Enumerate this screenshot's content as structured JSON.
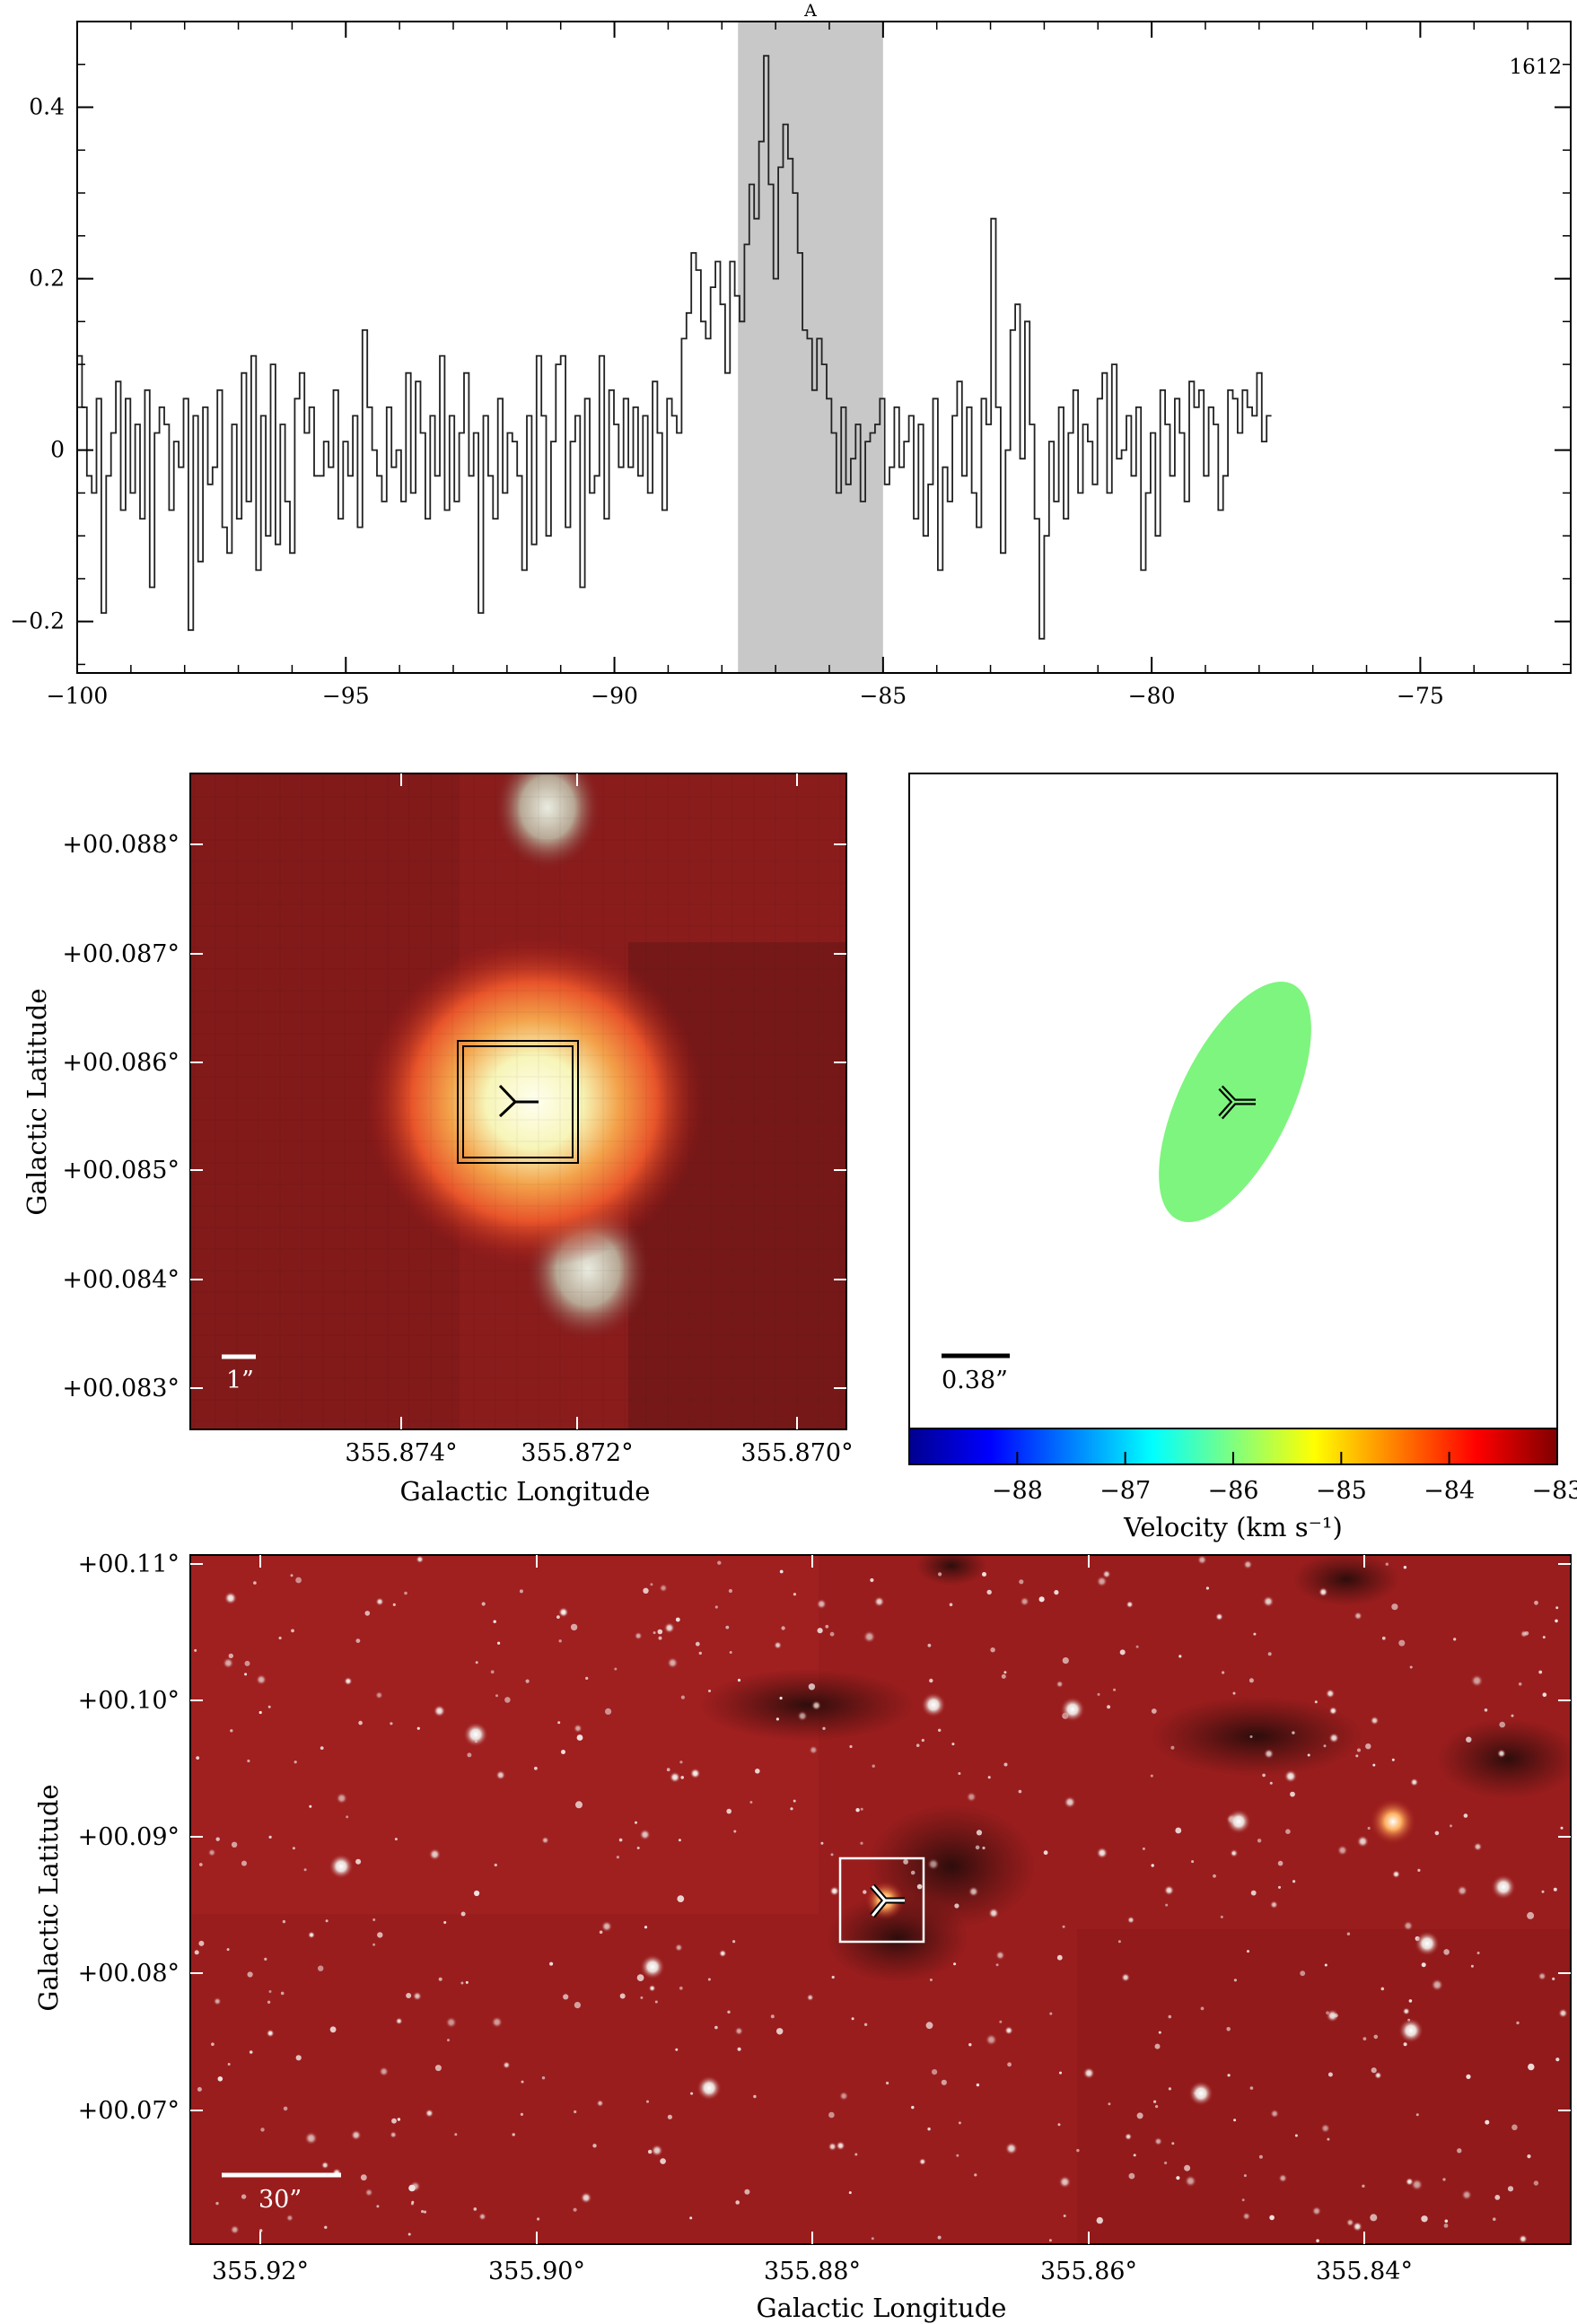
{
  "chart_data": [
    {
      "type": "line",
      "panel": "spectrum",
      "xlim": [
        -100,
        -72.2
      ],
      "ylim": [
        -0.26,
        0.5
      ],
      "xticks": [
        -100,
        -95,
        -90,
        -85,
        -80,
        -75
      ],
      "yticks": [
        -0.2,
        0,
        0.2,
        0.4
      ],
      "xtick_labels": [
        "−100",
        "−95",
        "−90",
        "−85",
        "−80",
        "−75"
      ],
      "ytick_labels": [
        "−0.2",
        "0",
        "0.2",
        "0.4"
      ],
      "corner_label": "1612",
      "highlight": {
        "x0": -87.7,
        "x1": -85.0,
        "label": "A",
        "color": "#c8c8c8"
      },
      "series": [
        {
          "x0": -100,
          "dx": 0.09,
          "y": [
            0.11,
            0.05,
            -0.03,
            -0.05,
            0.06,
            -0.19,
            -0.03,
            0.02,
            0.08,
            -0.07,
            0.06,
            -0.05,
            0.03,
            -0.08,
            0.07,
            -0.16,
            0.02,
            0.05,
            0.03,
            -0.07,
            0.01,
            -0.02,
            0.06,
            -0.21,
            0.04,
            -0.13,
            0.05,
            -0.04,
            -0.02,
            0.07,
            -0.09,
            -0.12,
            0.03,
            -0.08,
            0.09,
            -0.06,
            0.11,
            -0.14,
            0.04,
            -0.1,
            0.1,
            -0.11,
            0.03,
            -0.06,
            -0.12,
            0.06,
            0.09,
            0.02,
            0.05,
            -0.03,
            -0.03,
            0.01,
            -0.02,
            0.07,
            -0.08,
            0.01,
            -0.03,
            0.04,
            -0.09,
            0.14,
            0.05,
            0.0,
            -0.03,
            -0.06,
            0.05,
            -0.02,
            0.0,
            -0.06,
            0.09,
            -0.05,
            0.08,
            0.02,
            -0.08,
            0.04,
            -0.03,
            0.11,
            -0.07,
            0.04,
            -0.06,
            0.02,
            0.09,
            -0.03,
            0.02,
            -0.19,
            0.04,
            -0.03,
            -0.08,
            0.06,
            -0.05,
            0.02,
            0.01,
            -0.03,
            -0.14,
            0.04,
            -0.11,
            0.11,
            0.04,
            -0.1,
            0.01,
            0.1,
            0.11,
            -0.09,
            0.01,
            0.04,
            -0.16,
            0.06,
            -0.05,
            -0.03,
            0.11,
            -0.08,
            0.07,
            0.03,
            -0.02,
            0.06,
            -0.02,
            0.05,
            -0.03,
            0.04,
            -0.05,
            0.08,
            0.02,
            -0.07,
            0.06,
            0.04,
            0.02,
            0.13,
            0.16,
            0.23,
            0.21,
            0.15,
            0.13,
            0.19,
            0.22,
            0.17,
            0.09,
            0.22,
            0.18,
            0.15,
            0.24,
            0.31,
            0.27,
            0.36,
            0.46,
            0.31,
            0.2,
            0.33,
            0.38,
            0.34,
            0.3,
            0.23,
            0.14,
            0.13,
            0.07,
            0.13,
            0.1,
            0.06,
            0.02,
            -0.05,
            0.05,
            -0.04,
            -0.01,
            0.03,
            -0.06,
            0.01,
            0.02,
            0.03,
            0.06,
            -0.04,
            -0.02,
            0.05,
            -0.02,
            0.01,
            0.04,
            -0.08,
            0.03,
            -0.1,
            -0.04,
            0.06,
            -0.14,
            -0.02,
            -0.06,
            0.04,
            0.08,
            -0.03,
            0.05,
            -0.05,
            -0.09,
            0.06,
            0.03,
            0.27,
            0.05,
            -0.12,
            0.0,
            0.14,
            0.17,
            -0.01,
            0.15,
            0.03,
            -0.08,
            -0.22,
            -0.1,
            0.01,
            -0.06,
            0.05,
            -0.08,
            0.02,
            0.07,
            -0.05,
            0.03,
            0.01,
            -0.04,
            0.06,
            0.09,
            -0.05,
            0.1,
            -0.01,
            0.0,
            0.04,
            -0.03,
            0.05,
            -0.14,
            -0.05,
            0.02,
            -0.1,
            0.07,
            0.03,
            -0.03,
            0.06,
            0.02,
            -0.06,
            0.08,
            0.05,
            0.07,
            -0.03,
            0.05,
            0.03,
            -0.07,
            -0.03,
            0.07,
            0.06,
            0.02,
            0.07,
            0.05,
            0.04,
            0.09,
            0.01,
            0.04
          ]
        }
      ]
    },
    {
      "type": "heatmap",
      "panel": "zoom-image",
      "xlabel": "Galactic Longitude",
      "ylabel": "Galactic Latitude",
      "xticks": [
        "355.874°",
        "355.872°",
        "355.870°"
      ],
      "yticks": [
        "+00.088°",
        "+00.087°",
        "+00.086°",
        "+00.085°",
        "+00.084°",
        "+00.083°"
      ],
      "scalebar": "1”"
    },
    {
      "type": "heatmap",
      "panel": "velocity-map",
      "scalebar": "0.38”",
      "colorbar": {
        "label": "Velocity (km s⁻¹)",
        "range": [
          -89,
          -83
        ],
        "ticks": [
          "−88",
          "−87",
          "−86",
          "−85",
          "−84",
          "−83"
        ]
      },
      "ellipse_color": "#7ef57e",
      "ellipse_velocity": -86.0
    },
    {
      "type": "heatmap",
      "panel": "wide-image",
      "xlabel": "Galactic Longitude",
      "ylabel": "Galactic Latitude",
      "xticks": [
        "355.92°",
        "355.90°",
        "355.88°",
        "355.86°",
        "355.84°"
      ],
      "yticks": [
        "+00.11°",
        "+00.10°",
        "+00.09°",
        "+00.08°",
        "+00.07°"
      ],
      "scalebar": "30”"
    }
  ]
}
